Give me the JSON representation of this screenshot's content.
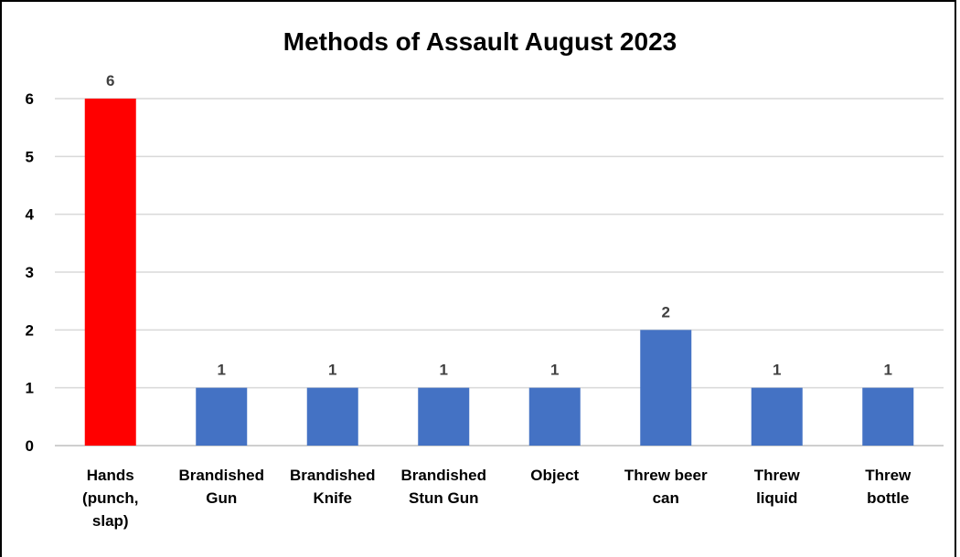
{
  "chart_data": {
    "type": "bar",
    "title": "Methods of Assault August 2023",
    "categories": [
      [
        "Hands",
        "(punch,",
        "slap)"
      ],
      [
        "Brandished",
        "Gun"
      ],
      [
        "Brandished",
        "Knife"
      ],
      [
        "Brandished",
        "Stun Gun"
      ],
      [
        "Object"
      ],
      [
        "Threw beer",
        "can"
      ],
      [
        "Threw",
        "liquid"
      ],
      [
        "Threw",
        "bottle"
      ]
    ],
    "values": [
      6,
      1,
      1,
      1,
      1,
      2,
      1,
      1
    ],
    "bar_colors": [
      "#ff0000",
      "#4472c4",
      "#4472c4",
      "#4472c4",
      "#4472c4",
      "#4472c4",
      "#4472c4",
      "#4472c4"
    ],
    "data_labels": [
      "6",
      "1",
      "1",
      "1",
      "1",
      "2",
      "1",
      "1"
    ],
    "ylim": [
      0,
      6
    ],
    "yticks": [
      0,
      1,
      2,
      3,
      4,
      5,
      6
    ],
    "grid": true,
    "legend": "none"
  }
}
